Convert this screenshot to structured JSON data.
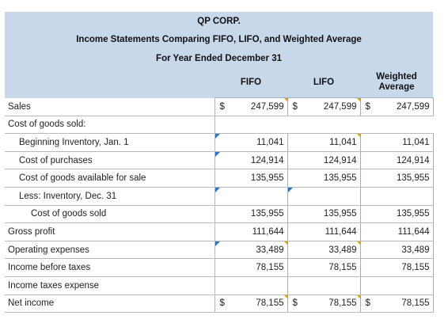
{
  "header": {
    "company": "QP CORP.",
    "title": "Income Statements Comparing FIFO, LIFO, and Weighted Average",
    "period": "For Year Ended December 31"
  },
  "columns": {
    "fifo": "FIFO",
    "lifo": "LIFO",
    "weighted_line1": "Weighted",
    "weighted_line2": "Average"
  },
  "rows": {
    "sales": {
      "label": "Sales",
      "cur": "$",
      "fifo": "247,599",
      "lifo": "247,599",
      "wa": "247,599"
    },
    "cogs": {
      "label": "Cost of goods sold:"
    },
    "begin_inv": {
      "label": "Beginning Inventory, Jan. 1",
      "fifo": "11,041",
      "lifo": "11,041",
      "wa": "11,041"
    },
    "purchases": {
      "label": "Cost of purchases",
      "fifo": "124,914",
      "lifo": "124,914",
      "wa": "124,914"
    },
    "available": {
      "label": "Cost of goods available for sale",
      "fifo": "135,955",
      "lifo": "135,955",
      "wa": "135,955"
    },
    "less_inv": {
      "label": "Less: Inventory, Dec. 31"
    },
    "cogs_total": {
      "label": "Cost of goods sold",
      "fifo": "135,955",
      "lifo": "135,955",
      "wa": "135,955"
    },
    "gross": {
      "label": "Gross profit",
      "fifo": "111,644",
      "lifo": "111,644",
      "wa": "111,644"
    },
    "opex": {
      "label": "Operating expenses",
      "fifo": "33,489",
      "lifo": "33,489",
      "wa": "33,489"
    },
    "ibt": {
      "label": "Income before taxes",
      "fifo": "78,155",
      "lifo": "78,155",
      "wa": "78,155"
    },
    "tax": {
      "label": "Income taxes expense"
    },
    "net": {
      "label": "Net income",
      "cur": "$",
      "fifo": "78,155",
      "lifo": "78,155",
      "wa": "78,155"
    }
  },
  "colors": {
    "header_bg": "#c8d7ea",
    "cell_border": "#9db0c6",
    "marker_blue": "#2f74c0",
    "marker_gold": "#d8a300"
  }
}
